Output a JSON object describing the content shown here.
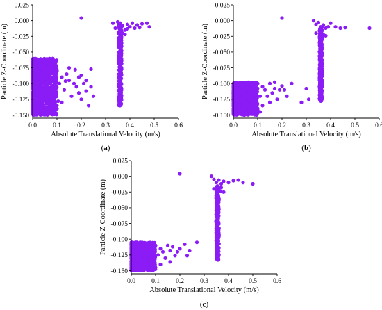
{
  "chart_data": [
    {
      "type": "scatter",
      "panel": "a",
      "panel_label": "a",
      "xlabel": "Absolute Translational Velocity (m/s)",
      "ylabel": "Particle Z-Coordinate (m)",
      "xlim": [
        0.0,
        0.6
      ],
      "ylim": [
        -0.155,
        0.025
      ],
      "xticks": [
        "0.0",
        "0.1",
        "0.2",
        "0.3",
        "0.4",
        "0.5",
        "0.6"
      ],
      "yticks": [
        "0.025",
        "0.000",
        "-0.025",
        "-0.050",
        "-0.075",
        "-0.100",
        "-0.125",
        "-0.150"
      ],
      "grid": false,
      "marker_color": "#8B1CF5",
      "outlier_points": [
        [
          0.2,
          0.004
        ]
      ],
      "column": {
        "x_center": 0.36,
        "x_spread": 0.006,
        "y_range": [
          -0.135,
          -0.005
        ]
      },
      "column_head": [
        [
          0.33,
          -0.004
        ],
        [
          0.34,
          -0.012
        ],
        [
          0.36,
          -0.004
        ],
        [
          0.37,
          -0.008
        ],
        [
          0.38,
          -0.015
        ],
        [
          0.39,
          -0.006
        ],
        [
          0.4,
          -0.01
        ],
        [
          0.41,
          -0.004
        ],
        [
          0.43,
          -0.007
        ],
        [
          0.45,
          -0.005
        ],
        [
          0.47,
          -0.004
        ],
        [
          0.48,
          -0.01
        ],
        [
          0.35,
          -0.002
        ],
        [
          0.36,
          -0.018
        ],
        [
          0.37,
          -0.02
        ],
        [
          0.38,
          -0.022
        ],
        [
          0.39,
          -0.013
        ],
        [
          0.42,
          -0.012
        ],
        [
          0.44,
          -0.011
        ],
        [
          0.355,
          -0.03
        ],
        [
          0.365,
          -0.025
        ]
      ],
      "cluster": {
        "x_range": [
          0.0,
          0.1
        ],
        "y_range": [
          -0.15,
          -0.06
        ]
      },
      "scatter_tail": [
        [
          0.1,
          -0.08
        ],
        [
          0.11,
          -0.1
        ],
        [
          0.12,
          -0.09
        ],
        [
          0.13,
          -0.11
        ],
        [
          0.14,
          -0.085
        ],
        [
          0.15,
          -0.095
        ],
        [
          0.16,
          -0.12
        ],
        [
          0.17,
          -0.1
        ],
        [
          0.18,
          -0.105
        ],
        [
          0.19,
          -0.09
        ],
        [
          0.2,
          -0.125
        ],
        [
          0.21,
          -0.1
        ],
        [
          0.22,
          -0.095
        ],
        [
          0.23,
          -0.135
        ],
        [
          0.24,
          -0.105
        ],
        [
          0.25,
          -0.12
        ],
        [
          0.24,
          -0.077
        ],
        [
          0.15,
          -0.075
        ],
        [
          0.12,
          -0.13
        ],
        [
          0.1,
          -0.14
        ],
        [
          0.19,
          -0.115
        ],
        [
          0.2,
          -0.087
        ],
        [
          0.105,
          -0.128
        ],
        [
          0.135,
          -0.096
        ],
        [
          0.175,
          -0.078
        ],
        [
          0.22,
          -0.112
        ]
      ]
    },
    {
      "type": "scatter",
      "panel": "b",
      "panel_label": "b",
      "xlabel": "Absolute Translational Velocity (m/s)",
      "ylabel": "Particle Z-Coordinate (m)",
      "xlim": [
        0.0,
        0.6
      ],
      "ylim": [
        -0.155,
        0.025
      ],
      "xticks": [
        "0.0",
        "0.1",
        "0.2",
        "0.3",
        "0.4",
        "0.5",
        "0.6"
      ],
      "yticks": [
        "0.025",
        "0.000",
        "-0.025",
        "-0.050",
        "-0.075",
        "-0.100",
        "-0.125",
        "-0.150"
      ],
      "grid": false,
      "marker_color": "#8B1CF5",
      "outlier_points": [
        [
          0.2,
          0.004
        ],
        [
          0.56,
          -0.012
        ]
      ],
      "column": {
        "x_center": 0.36,
        "x_spread": 0.006,
        "y_range": [
          -0.128,
          -0.01
        ]
      },
      "column_head": [
        [
          0.33,
          0.0
        ],
        [
          0.34,
          -0.006
        ],
        [
          0.35,
          -0.003
        ],
        [
          0.36,
          -0.01
        ],
        [
          0.37,
          -0.007
        ],
        [
          0.38,
          -0.012
        ],
        [
          0.39,
          -0.01
        ],
        [
          0.4,
          -0.004
        ],
        [
          0.42,
          -0.01
        ],
        [
          0.44,
          -0.012
        ],
        [
          0.46,
          -0.011
        ],
        [
          0.34,
          -0.02
        ],
        [
          0.36,
          -0.018
        ],
        [
          0.37,
          -0.022
        ],
        [
          0.38,
          -0.024
        ],
        [
          0.355,
          -0.028
        ],
        [
          0.365,
          -0.03
        ]
      ],
      "cluster": {
        "x_range": [
          0.0,
          0.1
        ],
        "y_range": [
          -0.15,
          -0.098
        ]
      },
      "scatter_tail": [
        [
          0.1,
          -0.1
        ],
        [
          0.11,
          -0.12
        ],
        [
          0.12,
          -0.105
        ],
        [
          0.13,
          -0.11
        ],
        [
          0.14,
          -0.12
        ],
        [
          0.15,
          -0.1
        ],
        [
          0.16,
          -0.115
        ],
        [
          0.17,
          -0.108
        ],
        [
          0.18,
          -0.125
        ],
        [
          0.19,
          -0.11
        ],
        [
          0.2,
          -0.104
        ],
        [
          0.21,
          -0.11
        ],
        [
          0.22,
          -0.12
        ],
        [
          0.24,
          -0.1
        ],
        [
          0.28,
          -0.13
        ],
        [
          0.31,
          -0.125
        ],
        [
          0.3,
          -0.108
        ],
        [
          0.12,
          -0.135
        ],
        [
          0.11,
          -0.145
        ],
        [
          0.15,
          -0.13
        ],
        [
          0.17,
          -0.098
        ]
      ]
    },
    {
      "type": "scatter",
      "panel": "c",
      "panel_label": "c",
      "xlabel": "Absolute Translational Velocity (m/s)",
      "ylabel": "Particle Z-Coordinate (m)",
      "xlim": [
        0.0,
        0.6
      ],
      "ylim": [
        -0.155,
        0.025
      ],
      "xticks": [
        "0.0",
        "0.1",
        "0.2",
        "0.3",
        "0.4",
        "0.5",
        "0.6"
      ],
      "yticks": [
        "0.025",
        "0.000",
        "-0.025",
        "-0.050",
        "-0.075",
        "-0.100",
        "-0.125",
        "-0.150"
      ],
      "grid": false,
      "marker_color": "#8B1CF5",
      "outlier_points": [
        [
          0.2,
          0.004
        ],
        [
          0.5,
          -0.012
        ]
      ],
      "column": {
        "x_center": 0.355,
        "x_spread": 0.006,
        "y_range": [
          -0.133,
          -0.015
        ]
      },
      "column_head": [
        [
          0.33,
          0.0
        ],
        [
          0.34,
          -0.005
        ],
        [
          0.35,
          -0.01
        ],
        [
          0.36,
          -0.006
        ],
        [
          0.37,
          -0.012
        ],
        [
          0.38,
          -0.008
        ],
        [
          0.4,
          -0.01
        ],
        [
          0.42,
          -0.007
        ],
        [
          0.44,
          -0.006
        ],
        [
          0.46,
          -0.01
        ],
        [
          0.34,
          -0.02
        ],
        [
          0.36,
          -0.022
        ],
        [
          0.37,
          -0.018
        ],
        [
          0.38,
          -0.025
        ],
        [
          0.35,
          -0.03
        ],
        [
          0.365,
          -0.024
        ]
      ],
      "cluster": {
        "x_range": [
          0.0,
          0.1
        ],
        "y_range": [
          -0.15,
          -0.105
        ]
      },
      "scatter_tail": [
        [
          0.1,
          -0.11
        ],
        [
          0.11,
          -0.125
        ],
        [
          0.12,
          -0.115
        ],
        [
          0.13,
          -0.12
        ],
        [
          0.14,
          -0.13
        ],
        [
          0.15,
          -0.11
        ],
        [
          0.16,
          -0.118
        ],
        [
          0.17,
          -0.112
        ],
        [
          0.18,
          -0.126
        ],
        [
          0.2,
          -0.115
        ],
        [
          0.22,
          -0.108
        ],
        [
          0.24,
          -0.118
        ],
        [
          0.27,
          -0.105
        ],
        [
          0.12,
          -0.14
        ],
        [
          0.1,
          -0.145
        ],
        [
          0.16,
          -0.136
        ],
        [
          0.19,
          -0.12
        ],
        [
          0.23,
          -0.126
        ]
      ]
    }
  ]
}
